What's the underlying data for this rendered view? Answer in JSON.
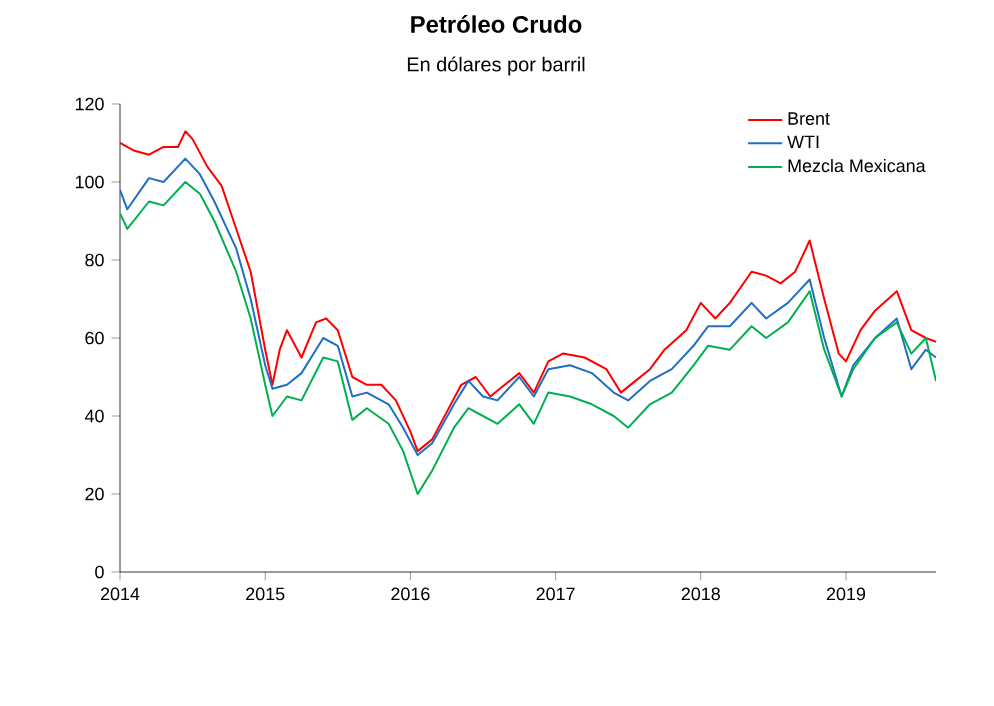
{
  "chart_data": {
    "type": "line",
    "title": "Petróleo Crudo",
    "subtitle": "En dólares por barril",
    "xlim": [
      2014,
      2019.62
    ],
    "xticks": [
      2014,
      2015,
      2016,
      2017,
      2018,
      2019
    ],
    "ylim": [
      0,
      120
    ],
    "yticks": [
      0,
      20,
      40,
      60,
      80,
      100,
      120
    ],
    "grid": false,
    "legend": "top right",
    "marker": "none",
    "line_style": "solid",
    "series": [
      {
        "name": "Brent",
        "color": "#ff0000",
        "x": [
          2014.0,
          2014.1,
          2014.2,
          2014.3,
          2014.4,
          2014.45,
          2014.5,
          2014.6,
          2014.7,
          2014.8,
          2014.9,
          2014.95,
          2015.0,
          2015.05,
          2015.1,
          2015.15,
          2015.25,
          2015.35,
          2015.42,
          2015.5,
          2015.6,
          2015.7,
          2015.8,
          2015.9,
          2016.0,
          2016.05,
          2016.15,
          2016.25,
          2016.35,
          2016.45,
          2016.55,
          2016.65,
          2016.75,
          2016.85,
          2016.95,
          2017.05,
          2017.2,
          2017.35,
          2017.45,
          2017.55,
          2017.65,
          2017.75,
          2017.9,
          2018.0,
          2018.1,
          2018.2,
          2018.35,
          2018.45,
          2018.55,
          2018.65,
          2018.75,
          2018.85,
          2018.95,
          2019.0,
          2019.1,
          2019.2,
          2019.35,
          2019.45,
          2019.55,
          2019.62
        ],
        "values": [
          110,
          108,
          107,
          109,
          109,
          113,
          111,
          104,
          99,
          88,
          77,
          67,
          57,
          48,
          57,
          62,
          55,
          64,
          65,
          62,
          50,
          48,
          48,
          44,
          36,
          31,
          34,
          41,
          48,
          50,
          45,
          48,
          51,
          46,
          54,
          56,
          55,
          52,
          46,
          49,
          52,
          57,
          62,
          69,
          65,
          69,
          77,
          76,
          74,
          77,
          85,
          70,
          56,
          54,
          62,
          67,
          72,
          62,
          60,
          59
        ]
      },
      {
        "name": "WTI",
        "color": "#1f6fc5",
        "x": [
          2014.0,
          2014.05,
          2014.2,
          2014.3,
          2014.45,
          2014.55,
          2014.65,
          2014.8,
          2014.9,
          2015.0,
          2015.05,
          2015.15,
          2015.25,
          2015.4,
          2015.5,
          2015.6,
          2015.7,
          2015.85,
          2015.95,
          2016.05,
          2016.15,
          2016.3,
          2016.4,
          2016.5,
          2016.6,
          2016.75,
          2016.85,
          2016.95,
          2017.1,
          2017.25,
          2017.4,
          2017.5,
          2017.65,
          2017.8,
          2017.95,
          2018.05,
          2018.2,
          2018.35,
          2018.45,
          2018.6,
          2018.75,
          2018.85,
          2018.97,
          2019.05,
          2019.2,
          2019.35,
          2019.45,
          2019.55,
          2019.62
        ],
        "values": [
          98,
          93,
          101,
          100,
          106,
          102,
          95,
          83,
          70,
          53,
          47,
          48,
          51,
          60,
          58,
          45,
          46,
          43,
          37,
          30,
          33,
          43,
          49,
          45,
          44,
          50,
          45,
          52,
          53,
          51,
          46,
          44,
          49,
          52,
          58,
          63,
          63,
          69,
          65,
          69,
          75,
          60,
          45,
          53,
          60,
          65,
          52,
          57,
          55
        ]
      },
      {
        "name": "Mezcla Mexicana",
        "color": "#00b050",
        "x": [
          2014.0,
          2014.05,
          2014.2,
          2014.3,
          2014.45,
          2014.55,
          2014.65,
          2014.8,
          2014.9,
          2015.0,
          2015.05,
          2015.15,
          2015.25,
          2015.4,
          2015.5,
          2015.6,
          2015.7,
          2015.85,
          2015.95,
          2016.05,
          2016.15,
          2016.3,
          2016.4,
          2016.5,
          2016.6,
          2016.75,
          2016.85,
          2016.95,
          2017.1,
          2017.25,
          2017.4,
          2017.5,
          2017.65,
          2017.8,
          2017.95,
          2018.05,
          2018.2,
          2018.35,
          2018.45,
          2018.6,
          2018.75,
          2018.85,
          2018.97,
          2019.05,
          2019.2,
          2019.35,
          2019.45,
          2019.55,
          2019.62
        ],
        "values": [
          92,
          88,
          95,
          94,
          100,
          97,
          90,
          77,
          65,
          48,
          40,
          45,
          44,
          55,
          54,
          39,
          42,
          38,
          31,
          20,
          26,
          37,
          42,
          40,
          38,
          43,
          38,
          46,
          45,
          43,
          40,
          37,
          43,
          46,
          53,
          58,
          57,
          63,
          60,
          64,
          72,
          57,
          45,
          52,
          60,
          64,
          56,
          60,
          49
        ]
      }
    ]
  }
}
